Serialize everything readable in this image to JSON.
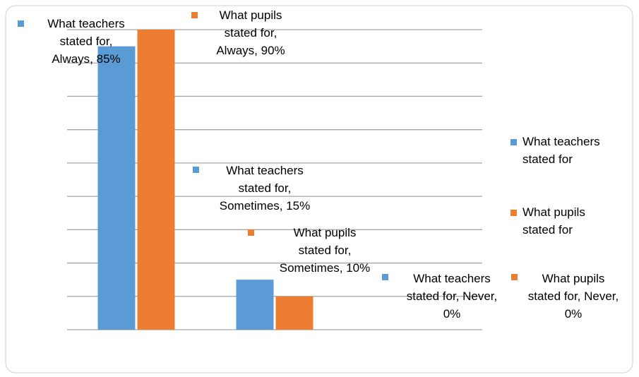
{
  "chart_data": {
    "type": "bar",
    "categories": [
      null,
      null,
      null
    ],
    "series": [
      {
        "name": "What teachers stated for",
        "color": "#5b9bd5",
        "values": [
          85,
          15,
          0
        ],
        "value_labels": [
          "What teachers stated for, Always, 85%",
          "What teachers stated for, Sometimes, 15%",
          "What teachers stated for, Never, 0%"
        ]
      },
      {
        "name": "What pupils stated for",
        "color": "#ed7d31",
        "values": [
          90,
          10,
          0
        ],
        "value_labels": [
          "What pupils stated for, Always, 90%",
          "What pupils stated for, Sometimes, 10%",
          "What pupils stated for, Never, 0%"
        ]
      }
    ],
    "ylim": [
      0,
      90
    ],
    "yticks": [
      0,
      10,
      20,
      30,
      40,
      50,
      60,
      70,
      80,
      90
    ],
    "grid": true,
    "legend": "right"
  }
}
